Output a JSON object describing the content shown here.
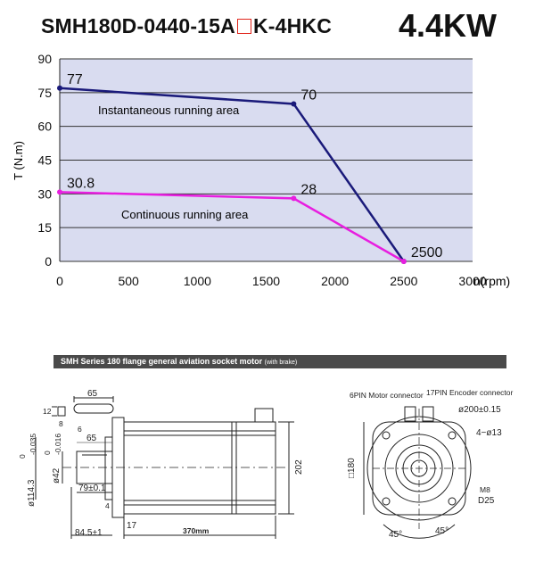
{
  "header": {
    "model_prefix": "SMH180D-0440-15A",
    "model_suffix": "K-4HKC",
    "power": "4.4KW"
  },
  "chart_data": {
    "type": "line",
    "xlabel": "n(rpm)",
    "ylabel": "T (N.m)",
    "xlim": [
      0,
      3000
    ],
    "ylim": [
      0,
      90
    ],
    "x_ticks": [
      "0",
      "500",
      "1000",
      "1500",
      "2000",
      "2500",
      "3000"
    ],
    "y_ticks": [
      "0",
      "15",
      "30",
      "45",
      "60",
      "75",
      "90"
    ],
    "grid": "horizontal",
    "series": [
      {
        "name": "Instantaneous running area",
        "color": "#1a1a7a",
        "x": [
          0,
          1700,
          2500
        ],
        "y": [
          77,
          70,
          0
        ]
      },
      {
        "name": "Continuous running area",
        "color": "#e81ee0",
        "x": [
          0,
          1700,
          2500
        ],
        "y": [
          30.8,
          28,
          0
        ]
      }
    ],
    "point_labels": [
      {
        "text": "77",
        "x": 0,
        "y": 77
      },
      {
        "text": "70",
        "x": 1700,
        "y": 70
      },
      {
        "text": "30.8",
        "x": 0,
        "y": 30.8
      },
      {
        "text": "28",
        "x": 1700,
        "y": 28
      },
      {
        "text": "2500",
        "x": 2500,
        "y": 0
      }
    ],
    "colors": {
      "plot_background": "#d9dcf0",
      "grid": "#333333"
    }
  },
  "drawing": {
    "section_title": "SMH Series 180 flange general aviation socket motor",
    "section_note": "(with brake)",
    "side_dims": {
      "key_length": "65",
      "key_height": "12",
      "key_width": "8",
      "shaft_length": "65",
      "shaft_chamfer": "6",
      "spigot": "ø114.3",
      "spigot_tol_upper": "0",
      "spigot_tol_lower": "-0.035",
      "shaft_dia": "ø42",
      "shaft_tol_upper": "0",
      "shaft_tol_lower": "-0.016",
      "shoulder": "79±0.1",
      "flange_thickness": "4",
      "flange_offset": "84.5±1",
      "flange_gap": "17",
      "body_length": "370mm",
      "height": "202"
    },
    "front_dims": {
      "motor_connector": "6PIN Motor connector",
      "encoder_connector": "17PIN Encoder connector",
      "pcd": "ø200±0.15",
      "holes": "4−ø13",
      "square": "□180",
      "thread": "M8",
      "depth": "D25",
      "angle_left": "45°",
      "angle_right": "45°"
    }
  }
}
